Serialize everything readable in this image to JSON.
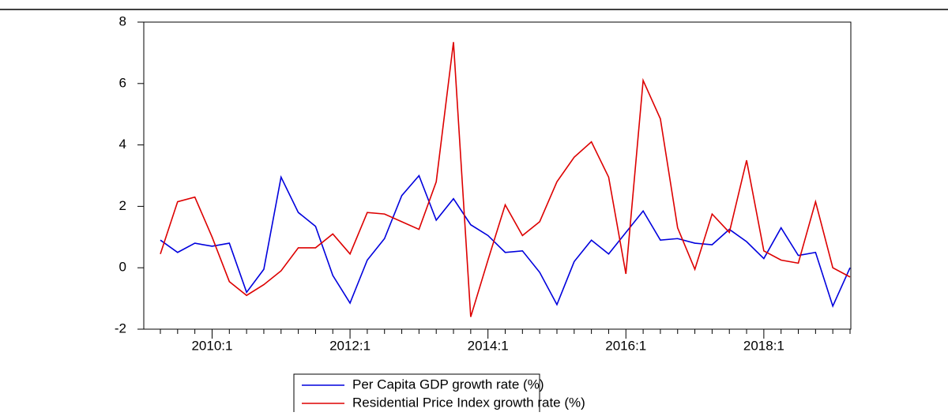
{
  "chart_data": {
    "type": "line",
    "categories": [
      null,
      null,
      null,
      "2010:1",
      null,
      null,
      null,
      null,
      null,
      null,
      null,
      "2012:1",
      null,
      null,
      null,
      null,
      null,
      null,
      null,
      "2014:1",
      null,
      null,
      null,
      null,
      null,
      null,
      null,
      "2016:1",
      null,
      null,
      null,
      null,
      null,
      null,
      null,
      "2018:1",
      null,
      null,
      null,
      null,
      null
    ],
    "series": [
      {
        "name": "Per Capita GDP growth rate (%)",
        "color": "#0000dd",
        "values": [
          0.9,
          0.5,
          0.8,
          0.7,
          0.8,
          -0.8,
          -0.05,
          2.95,
          1.8,
          1.35,
          -0.25,
          -1.15,
          0.25,
          0.95,
          2.35,
          3.0,
          1.55,
          2.25,
          1.4,
          1.05,
          0.5,
          0.55,
          -0.15,
          -1.2,
          0.2,
          0.9,
          0.45,
          1.15,
          1.85,
          0.9,
          0.95,
          0.8,
          0.75,
          1.25,
          0.85,
          0.3,
          1.3,
          0.4,
          0.5,
          -1.25,
          0.0
        ]
      },
      {
        "name": "Residential Price Index growth rate (%)",
        "color": "#dd0000",
        "values": [
          0.45,
          2.15,
          2.3,
          1.0,
          -0.45,
          -0.9,
          -0.55,
          -0.1,
          0.65,
          0.65,
          1.1,
          0.45,
          1.8,
          1.75,
          1.5,
          1.25,
          2.8,
          7.35,
          -1.6,
          0.25,
          2.05,
          1.05,
          1.5,
          2.8,
          3.6,
          4.1,
          2.95,
          -0.2,
          6.1,
          4.85,
          1.3,
          -0.05,
          1.75,
          1.15,
          3.5,
          0.55,
          0.25,
          0.15,
          2.15,
          0.0,
          -0.3
        ]
      }
    ],
    "ylim": [
      -2,
      8
    ],
    "yticks": [
      -2,
      0,
      2,
      4,
      6,
      8
    ],
    "grid": false
  }
}
